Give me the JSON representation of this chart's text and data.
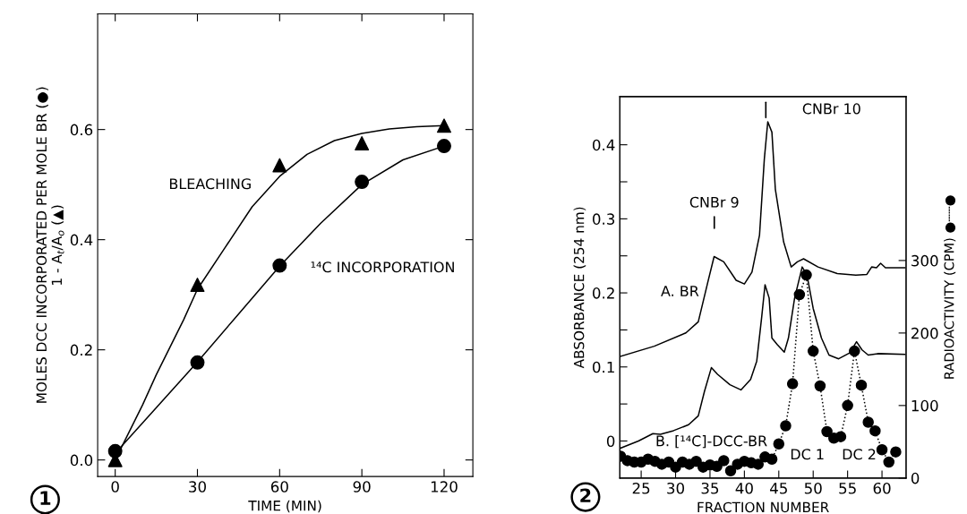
{
  "chart_data": [
    {
      "type": "scatter",
      "xlabel": "TIME (MIN)",
      "ylabel": "MOLES DCC INCORPORATED PER MOLE BR (●)\n1 - A$_{t}$/A$_{o}$ (▲)",
      "x": [
        0,
        30,
        60,
        90,
        120
      ],
      "xlim": [
        -6.4,
        130.5
      ],
      "ylim": [
        -0.03,
        0.81
      ],
      "xticks": [
        0,
        30,
        60,
        90,
        120
      ],
      "yticks": [
        {
          "value": 0,
          "label": "0.0"
        },
        {
          "value": 0.2,
          "label": "0.2"
        },
        {
          "value": 0.4,
          "label": "0.4"
        },
        {
          "value": 0.6,
          "label": "0.6"
        }
      ],
      "series": [
        {
          "marker": "triangle",
          "color": "#000000",
          "values": [
            0.0,
            0.318,
            0.535,
            0.575,
            0.607
          ]
        },
        {
          "marker": "circle",
          "color": "#000000",
          "values": [
            0.016,
            0.177,
            0.353,
            0.505,
            0.57
          ]
        },
        {
          "type": "line",
          "marker": "none",
          "line_style": "solid",
          "color": "#000000",
          "x": [
            0,
            5,
            10,
            15,
            20,
            25,
            30,
            40,
            50,
            60,
            70,
            80,
            90,
            100,
            110,
            120
          ],
          "values": [
            0.0,
            0.05,
            0.1,
            0.155,
            0.205,
            0.255,
            0.31,
            0.385,
            0.46,
            0.515,
            0.555,
            0.58,
            0.593,
            0.601,
            0.605,
            0.607
          ]
        },
        {
          "type": "line",
          "marker": "none",
          "line_style": "solid",
          "color": "#000000",
          "x": [
            0,
            15,
            30,
            45,
            60,
            75,
            90,
            105,
            120
          ],
          "values": [
            0.012,
            0.095,
            0.178,
            0.265,
            0.352,
            0.43,
            0.5,
            0.545,
            0.57
          ]
        }
      ],
      "annotations": [
        "BLEACHING",
        "¹⁴C INCORPORATION",
        "1"
      ]
    },
    {
      "type": "line",
      "xlabel": "FRACTION NUMBER",
      "ylabel": "ABSORBANCE (254 nm)",
      "y2label": "RADIOACTIVITY (CPM) ●┄┄●",
      "xlim": [
        21.9,
        63.5
      ],
      "ylim": [
        -0.05,
        0.465
      ],
      "y2lim": [
        0,
        526
      ],
      "xticks": [
        25,
        30,
        35,
        40,
        45,
        50,
        55,
        60
      ],
      "yticks": [
        0,
        {
          "value": 0.05,
          "label": null
        },
        0.1,
        {
          "value": 0.15,
          "label": null
        },
        0.2,
        {
          "value": 0.25,
          "label": null
        },
        0.3,
        {
          "value": 0.35,
          "label": null
        },
        0.4
      ],
      "y2ticks": [
        0,
        100,
        200,
        300
      ],
      "series": [
        {
          "marker": "none",
          "line_style": "solid",
          "color": "#000000",
          "x": [
            21.9,
            26.9,
            31.5,
            33.3,
            34.7,
            35.6,
            37.0,
            38.8,
            40.0,
            41.1,
            42.2,
            42.9,
            43.4,
            44.0,
            44.5,
            45.7,
            46.8,
            47.7,
            48.6,
            50.7,
            53.5,
            56.2,
            57.8,
            58.5,
            59.2,
            59.8,
            60.5,
            63.3
          ],
          "values": [
            0.114,
            0.128,
            0.146,
            0.161,
            0.215,
            0.249,
            0.242,
            0.217,
            0.212,
            0.228,
            0.278,
            0.381,
            0.431,
            0.417,
            0.34,
            0.269,
            0.235,
            0.242,
            0.246,
            0.235,
            0.226,
            0.224,
            0.225,
            0.235,
            0.234,
            0.24,
            0.234,
            0.234
          ]
        },
        {
          "marker": "none",
          "line_style": "solid",
          "color": "#000000",
          "x": [
            21.9,
            24.6,
            26.7,
            27.8,
            29.7,
            31.9,
            33.3,
            34.2,
            35.2,
            36.1,
            37.9,
            39.5,
            40.9,
            41.8,
            42.5,
            43.0,
            43.6,
            44.0,
            44.8,
            45.8,
            46.4,
            47.3,
            48.4,
            49.1,
            50.0,
            51.2,
            52.3,
            53.7,
            55.3,
            56.3,
            57.1,
            58.0,
            59.4,
            63.3
          ],
          "values": [
            -0.01,
            0.0,
            0.01,
            0.009,
            0.014,
            0.022,
            0.034,
            0.067,
            0.099,
            0.09,
            0.076,
            0.069,
            0.083,
            0.108,
            0.166,
            0.211,
            0.193,
            0.139,
            0.13,
            0.12,
            0.139,
            0.193,
            0.235,
            0.224,
            0.179,
            0.139,
            0.116,
            0.111,
            0.119,
            0.134,
            0.123,
            0.116,
            0.118,
            0.117
          ]
        },
        {
          "axis": "y2",
          "marker": "circle",
          "line_style": "dotted",
          "color": "#000000",
          "x": [
            22,
            23,
            24,
            25,
            26,
            27,
            28,
            29,
            30,
            31,
            32,
            33,
            34,
            35,
            36,
            37,
            38,
            39,
            40,
            41,
            42,
            43,
            44,
            45,
            46,
            47,
            48,
            49,
            50,
            51,
            52,
            53,
            54,
            55,
            56,
            57,
            58,
            59,
            60,
            61,
            62
          ],
          "values": [
            30,
            24,
            22,
            22,
            26,
            23,
            19,
            22,
            15,
            22,
            19,
            23,
            15,
            18,
            16,
            24,
            10,
            19,
            23,
            21,
            19,
            29,
            26,
            47,
            72,
            130,
            253,
            280,
            175,
            127,
            64,
            55,
            57,
            100,
            175,
            128,
            77,
            65,
            39,
            22,
            36
          ]
        }
      ],
      "annotations": [
        "CNBr 10",
        "CNBr 9",
        "A. BR",
        "B. [¹⁴C]-DCC-BR",
        "DC 1",
        "DC 2",
        "2"
      ]
    }
  ]
}
